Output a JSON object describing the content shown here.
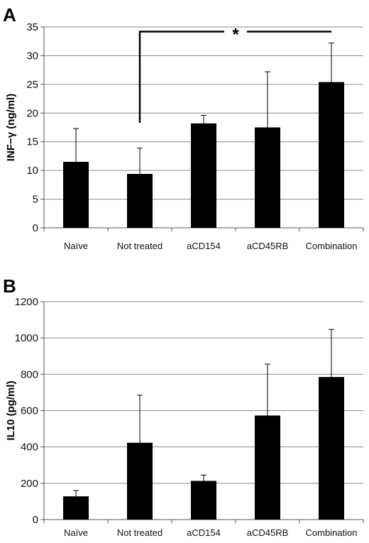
{
  "chart_data": [
    {
      "type": "bar",
      "panel": "A",
      "ylabel": "INF−γ (ng/ml)",
      "ylim": [
        0,
        35
      ],
      "yticks": [
        0,
        5,
        10,
        15,
        20,
        25,
        30,
        35
      ],
      "grid": true,
      "categories": [
        "Naïve",
        "Not treated",
        "aCD154",
        "aCD45RB",
        "Combination"
      ],
      "values": [
        11.5,
        9.4,
        18.2,
        17.5,
        25.4
      ],
      "error": [
        5.8,
        4.5,
        1.4,
        9.7,
        6.8
      ],
      "annotations": [
        {
          "label": "*",
          "from": "Not treated",
          "to": "Combination",
          "level": 34.2,
          "start_level": 18.3
        }
      ]
    },
    {
      "type": "bar",
      "panel": "B",
      "ylabel": "IL10 (pg/ml)",
      "ylim": [
        0,
        1200
      ],
      "yticks": [
        0,
        200,
        400,
        600,
        800,
        1000,
        1200
      ],
      "grid": true,
      "categories": [
        "Naïve",
        "Not treated",
        "aCD154",
        "aCD45RB",
        "Combination"
      ],
      "values": [
        128,
        423,
        213,
        573,
        785
      ],
      "error": [
        32,
        262,
        32,
        283,
        262
      ]
    }
  ]
}
